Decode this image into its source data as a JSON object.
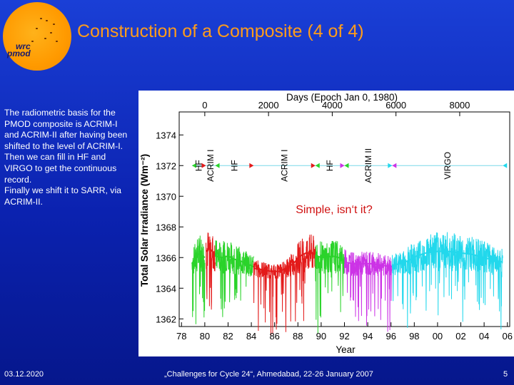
{
  "slide": {
    "title": "Construction of a Composite (4 of 4)",
    "logo_line1": "wrc",
    "logo_line2": "pmod",
    "body": [
      "The radiometric basis for the PMOD composite is ACRIM-I and ACRIM-II after having been shifted  to the level of ACRIM-I.",
      "Then we can fill in HF and VIRGO to get the continuous record.",
      "Finally we shift it to SARR, via ACRIM-II."
    ],
    "footer_date": "03.12.2020",
    "footer_event": "„Challenges for Cycle 24“, Ahmedabad, 22-26 January 2007",
    "page_number": "5",
    "colors": {
      "background": "#0b22b0",
      "title": "#ff9c1a",
      "text": "#ffffff",
      "annotation": "#d01010"
    }
  },
  "chart_data": {
    "type": "line",
    "title": "",
    "xlabel": "Year",
    "ylabel": "Total Solar Irradiance (Wm⁻²)",
    "x2label": "Days (Epoch Jan 0, 1980)",
    "x_tick_labels": [
      "78",
      "80",
      "82",
      "84",
      "86",
      "88",
      "90",
      "92",
      "94",
      "96",
      "98",
      "00",
      "02",
      "04",
      "06"
    ],
    "x_ticks": [
      1978,
      1980,
      1982,
      1984,
      1986,
      1988,
      1990,
      1992,
      1994,
      1996,
      1998,
      2000,
      2002,
      2004,
      2006
    ],
    "x2_ticks": [
      "0",
      "2000",
      "4000",
      "6000",
      "8000"
    ],
    "y_ticks": [
      1362,
      1364,
      1366,
      1368,
      1370,
      1372,
      1374
    ],
    "ylim": [
      1361.5,
      1375.5
    ],
    "xlim": [
      1977.8,
      2006.2
    ],
    "annotation": "Simple, isn‘t it?",
    "reference_level": 1372,
    "segments": [
      {
        "name": "HF",
        "x_start": 1978.9,
        "x_end": 1980.1,
        "color": "#2ad32a"
      },
      {
        "name": "ACRIM I",
        "x_start": 1980.1,
        "x_end": 1980.9,
        "color": "#e31a1a"
      },
      {
        "name": "HF",
        "x_start": 1980.9,
        "x_end": 1984.2,
        "color": "#2ad32a"
      },
      {
        "name": "ACRIM I",
        "x_start": 1984.2,
        "x_end": 1989.5,
        "color": "#e31a1a"
      },
      {
        "name": "HF",
        "x_start": 1989.5,
        "x_end": 1992.0,
        "color": "#2ad32a"
      },
      {
        "name": "ACRIM II",
        "x_start": 1992.0,
        "x_end": 1996.1,
        "color": "#cc33e6"
      },
      {
        "name": "VIRGO",
        "x_start": 1996.1,
        "x_end": 2005.6,
        "color": "#22d8ec"
      }
    ],
    "series": [
      {
        "color": "#2ad32a",
        "x": [
          1978.9,
          1979.3,
          1979.6,
          1980.0
        ],
        "y": [
          1365.6,
          1366.1,
          1366.3,
          1366.0
        ]
      },
      {
        "color": "#e31a1a",
        "x": [
          1980.1,
          1980.4,
          1980.9
        ],
        "y": [
          1366.4,
          1366.6,
          1366.2
        ]
      },
      {
        "color": "#2ad32a",
        "x": [
          1980.9,
          1981.5,
          1982.0,
          1982.5,
          1983.0,
          1983.6,
          1984.2
        ],
        "y": [
          1366.1,
          1366.0,
          1366.1,
          1365.9,
          1365.8,
          1365.6,
          1365.4
        ]
      },
      {
        "color": "#e31a1a",
        "x": [
          1984.2,
          1985.0,
          1985.7,
          1986.4,
          1987.0,
          1987.6,
          1988.2,
          1988.7,
          1989.1,
          1989.5
        ],
        "y": [
          1365.3,
          1365.2,
          1365.1,
          1365.1,
          1365.3,
          1365.6,
          1366.1,
          1366.3,
          1366.3,
          1366.2
        ]
      },
      {
        "color": "#2ad32a",
        "x": [
          1989.5,
          1990.2,
          1991.0,
          1991.5,
          1992.0
        ],
        "y": [
          1366.1,
          1366.0,
          1366.1,
          1366.0,
          1365.8
        ]
      },
      {
        "color": "#cc33e6",
        "x": [
          1992.0,
          1992.8,
          1993.6,
          1994.4,
          1995.2,
          1996.1
        ],
        "y": [
          1365.7,
          1365.6,
          1365.6,
          1365.6,
          1365.5,
          1365.4
        ]
      },
      {
        "color": "#22d8ec",
        "x": [
          1996.1,
          1996.8,
          1997.5,
          1998.2,
          1999.0,
          2000.0,
          2001.0,
          2002.0,
          2003.0,
          2004.0,
          2005.0,
          2005.6
        ],
        "y": [
          1365.5,
          1365.6,
          1365.8,
          1366.1,
          1366.3,
          1366.4,
          1366.4,
          1366.3,
          1366.2,
          1366.0,
          1365.8,
          1365.7
        ]
      }
    ],
    "markers": [
      {
        "x": 1978.9,
        "y": 1372,
        "color": "#2ad32a"
      },
      {
        "x": 1980.1,
        "y": 1372,
        "color": "#e31a1a"
      },
      {
        "x": 1980.9,
        "y": 1372,
        "color": "#2ad32a"
      },
      {
        "x": 1984.2,
        "y": 1372,
        "color": "#e31a1a"
      },
      {
        "x": 1989.5,
        "y": 1372,
        "color": "#2ad32a"
      },
      {
        "x": 1989.5,
        "y": 1372,
        "color": "#e31a1a"
      },
      {
        "x": 1992.0,
        "y": 1372,
        "color": "#2ad32a"
      },
      {
        "x": 1992.0,
        "y": 1372,
        "color": "#cc33e6"
      },
      {
        "x": 1996.1,
        "y": 1372,
        "color": "#cc33e6"
      },
      {
        "x": 1996.1,
        "y": 1372,
        "color": "#22d8ec"
      },
      {
        "x": 2005.6,
        "y": 1372,
        "color": "#22d8ec"
      }
    ]
  }
}
